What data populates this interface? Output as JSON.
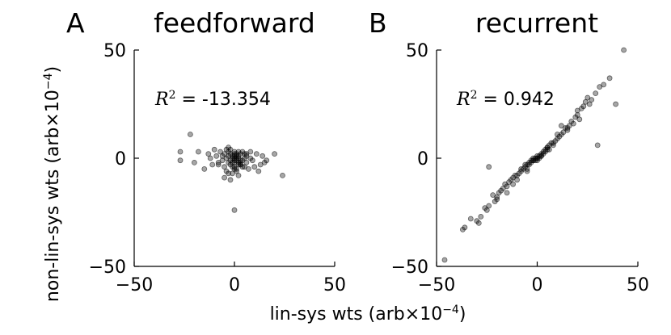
{
  "figure": {
    "ylabel_main": "non-lin-sys wts (arb",
    "ylabel_times": "×10",
    "ylabel_exp": "−4",
    "ylabel_close": ")",
    "xlabel_main": "lin-sys wts (arb",
    "xlabel_times": "×10",
    "xlabel_exp": "−4",
    "xlabel_close": ")"
  },
  "chart_data": [
    {
      "type": "scatter",
      "panel_letter": "A",
      "title": "feedforward",
      "r2_symbol": "R",
      "r2_exp": "2",
      "r2_text": " = -13.354",
      "xlim": [
        -50,
        50
      ],
      "ylim": [
        -50,
        50
      ],
      "xticks": [
        "−50",
        "0",
        "50"
      ],
      "yticks": [
        "−50",
        "0",
        "50"
      ],
      "ytick_values": [
        -50,
        0,
        50
      ],
      "xtick_values": [
        -50,
        0,
        50
      ],
      "color": "#000000",
      "x": [
        -22,
        -27,
        -27,
        -20,
        -18,
        -15,
        -13,
        -11,
        -10,
        -9,
        -8,
        -7,
        -6,
        -5,
        -5,
        -4,
        -4,
        -3,
        -3,
        -3,
        -2,
        -2,
        -2,
        -1,
        -1,
        -1,
        0,
        0,
        0,
        0,
        0,
        0,
        1,
        1,
        1,
        1,
        2,
        2,
        2,
        3,
        3,
        3,
        4,
        4,
        5,
        5,
        6,
        6,
        7,
        8,
        9,
        10,
        11,
        12,
        13,
        14,
        15,
        16,
        20,
        24,
        -5,
        -3,
        -1,
        0,
        1,
        2,
        3,
        -12,
        -8,
        4,
        8,
        0,
        -2,
        2,
        0,
        1,
        -1,
        3,
        -4,
        5,
        -6,
        6,
        -2,
        2,
        -3
      ],
      "y": [
        11,
        3,
        -1,
        -2,
        3,
        -5,
        2,
        -3,
        4,
        1,
        -2,
        3,
        -1,
        -4,
        2,
        0,
        4,
        -2,
        1,
        3,
        -1,
        2,
        -3,
        0,
        1,
        -2,
        0,
        1,
        -1,
        2,
        -2,
        3,
        0,
        1,
        -1,
        2,
        0,
        -2,
        1,
        -3,
        2,
        -1,
        3,
        -4,
        0,
        2,
        -2,
        1,
        -5,
        3,
        -1,
        -4,
        2,
        -6,
        -3,
        1,
        -2,
        -1,
        2,
        -8,
        -9,
        -7,
        -4,
        -5,
        -6,
        -3,
        -2,
        0,
        -3,
        -1,
        0,
        -24,
        -10,
        -8,
        -4,
        -5,
        -7,
        -3,
        -6,
        -4,
        1,
        2,
        4,
        3,
        5
      ],
      "point_radius": 3
    },
    {
      "type": "scatter",
      "panel_letter": "B",
      "title": "recurrent",
      "r2_symbol": "R",
      "r2_exp": "2",
      "r2_text": " = 0.942",
      "xlim": [
        -50,
        50
      ],
      "ylim": [
        -50,
        50
      ],
      "xticks": [
        "−50",
        "0",
        "50"
      ],
      "yticks": [
        "−50",
        "0",
        "50"
      ],
      "ytick_values": [
        -50,
        0,
        50
      ],
      "xtick_values": [
        -50,
        0,
        50
      ],
      "color": "#000000",
      "x": [
        -46,
        -37,
        -36,
        -33,
        -30,
        -29,
        -28,
        -26,
        -24,
        -22,
        -21,
        -20,
        -19,
        -18,
        -17,
        -16,
        -15,
        -14,
        -13,
        -12,
        -11,
        -10,
        -9,
        -8,
        -7,
        -6,
        -5,
        -5,
        -4,
        -4,
        -3,
        -3,
        -2,
        -2,
        -1,
        -1,
        0,
        0,
        0,
        1,
        1,
        2,
        2,
        3,
        3,
        4,
        4,
        5,
        5,
        6,
        7,
        8,
        9,
        10,
        11,
        12,
        13,
        14,
        15,
        16,
        17,
        18,
        19,
        20,
        21,
        22,
        23,
        24,
        26,
        27,
        29,
        31,
        33,
        36,
        39,
        43,
        46,
        -15,
        -10,
        -5,
        0,
        5,
        10,
        15,
        -20,
        -25,
        25,
        30,
        -24,
        20,
        8,
        -8,
        2,
        -2,
        6,
        -6,
        12,
        -12
      ],
      "y": [
        -47,
        -33,
        -32,
        -28,
        -29,
        -30,
        -27,
        -23,
        -22,
        -17,
        -20,
        -19,
        -16,
        -15,
        -14,
        -12,
        -13,
        -11,
        -10,
        -9,
        -8,
        -8,
        -7,
        -6,
        -5,
        -4,
        -5,
        -3,
        -3,
        -2,
        -2,
        -1,
        -1,
        0,
        0,
        -1,
        0,
        1,
        -1,
        1,
        0,
        2,
        1,
        3,
        2,
        3,
        4,
        5,
        4,
        6,
        7,
        7,
        8,
        9,
        10,
        11,
        12,
        14,
        13,
        15,
        17,
        16,
        19,
        20,
        18,
        23,
        24,
        26,
        25,
        27,
        30,
        33,
        34,
        37,
        25,
        50,
        52,
        -16,
        -10,
        -6,
        0,
        5,
        11,
        14,
        -18,
        -24,
        28,
        6,
        -4,
        22,
        6,
        -5,
        1,
        -1,
        4,
        -3,
        15,
        -12
      ],
      "point_radius": 3
    }
  ]
}
